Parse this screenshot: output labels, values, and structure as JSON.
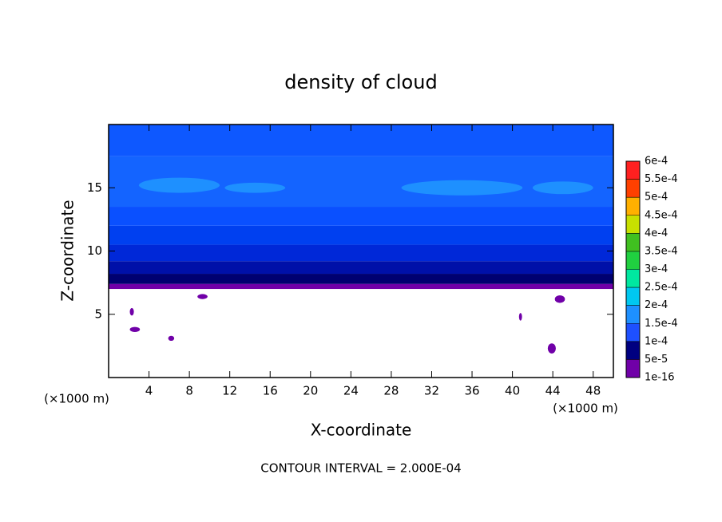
{
  "chart_data": {
    "type": "contour",
    "title": "density of cloud",
    "xlabel": "X-coordinate",
    "ylabel": "Z-coordinate",
    "x_unit": "(×1000 m)",
    "y_unit": "(×1000 m)",
    "footnote": "CONTOUR INTERVAL = 2.000E-04",
    "xlim": [
      0,
      50
    ],
    "ylim": [
      0,
      20
    ],
    "xticks": [
      4,
      8,
      12,
      16,
      20,
      24,
      28,
      32,
      36,
      40,
      44,
      48
    ],
    "yticks": [
      5,
      10,
      15
    ],
    "bands": [
      {
        "zlim": [
          7,
          7.4
        ],
        "color": "#7000a8"
      },
      {
        "zlim": [
          7.4,
          8.2
        ],
        "color": "#000070"
      },
      {
        "zlim": [
          8.2,
          9.2
        ],
        "color": "#0010a8"
      },
      {
        "zlim": [
          9.2,
          10.5
        ],
        "color": "#0028d8"
      },
      {
        "zlim": [
          10.5,
          12
        ],
        "color": "#0040f0"
      },
      {
        "zlim": [
          12,
          13.5
        ],
        "color": "#0a50ff"
      },
      {
        "zlim": [
          13.5,
          17.5
        ],
        "color": "#1464ff"
      },
      {
        "zlim": [
          17.5,
          20
        ],
        "color": "#0e58ff"
      }
    ],
    "patches": [
      {
        "x": 7,
        "z": 15.2,
        "rx": 4,
        "rz": 0.6,
        "color": "#1e90ff"
      },
      {
        "x": 14.5,
        "z": 15,
        "rx": 3,
        "rz": 0.4,
        "color": "#1e90ff"
      },
      {
        "x": 35,
        "z": 15,
        "rx": 6,
        "rz": 0.6,
        "color": "#1e90ff"
      },
      {
        "x": 45,
        "z": 15,
        "rx": 3,
        "rz": 0.5,
        "color": "#1e90ff"
      },
      {
        "x": 9.3,
        "z": 6.4,
        "rx": 0.5,
        "rz": 0.2,
        "color": "#7000a8"
      },
      {
        "x": 2.3,
        "z": 5.2,
        "rx": 0.2,
        "rz": 0.3,
        "color": "#7000a8"
      },
      {
        "x": 2.6,
        "z": 3.8,
        "rx": 0.5,
        "rz": 0.2,
        "color": "#7000a8"
      },
      {
        "x": 6.2,
        "z": 3.1,
        "rx": 0.3,
        "rz": 0.2,
        "color": "#7000a8"
      },
      {
        "x": 44.7,
        "z": 6.2,
        "rx": 0.5,
        "rz": 0.3,
        "color": "#7000a8"
      },
      {
        "x": 40.8,
        "z": 4.8,
        "rx": 0.15,
        "rz": 0.3,
        "color": "#7000a8"
      },
      {
        "x": 43.9,
        "z": 2.3,
        "rx": 0.4,
        "rz": 0.4,
        "color": "#7000a8"
      }
    ],
    "colorbar": {
      "levels": [
        {
          "value": 1e-16,
          "label": "1e-16"
        },
        {
          "value": 5e-05,
          "label": "5e-5"
        },
        {
          "value": 0.0001,
          "label": "1e-4"
        },
        {
          "value": 0.00015,
          "label": "1.5e-4"
        },
        {
          "value": 0.0002,
          "label": "2e-4"
        },
        {
          "value": 0.00025,
          "label": "2.5e-4"
        },
        {
          "value": 0.0003,
          "label": "3e-4"
        },
        {
          "value": 0.00035,
          "label": "3.5e-4"
        },
        {
          "value": 0.0004,
          "label": "4e-4"
        },
        {
          "value": 0.00045,
          "label": "4.5e-4"
        },
        {
          "value": 0.0005,
          "label": "5e-4"
        },
        {
          "value": 0.00055,
          "label": "5.5e-4"
        },
        {
          "value": 0.0006,
          "label": "6e-4"
        }
      ],
      "colors": [
        "#7000a8",
        "#000080",
        "#1e50ff",
        "#1e90ff",
        "#00c8f0",
        "#00e8a0",
        "#20d040",
        "#40c020",
        "#c8e000",
        "#ffb000",
        "#ff4000",
        "#ff2020"
      ]
    }
  }
}
